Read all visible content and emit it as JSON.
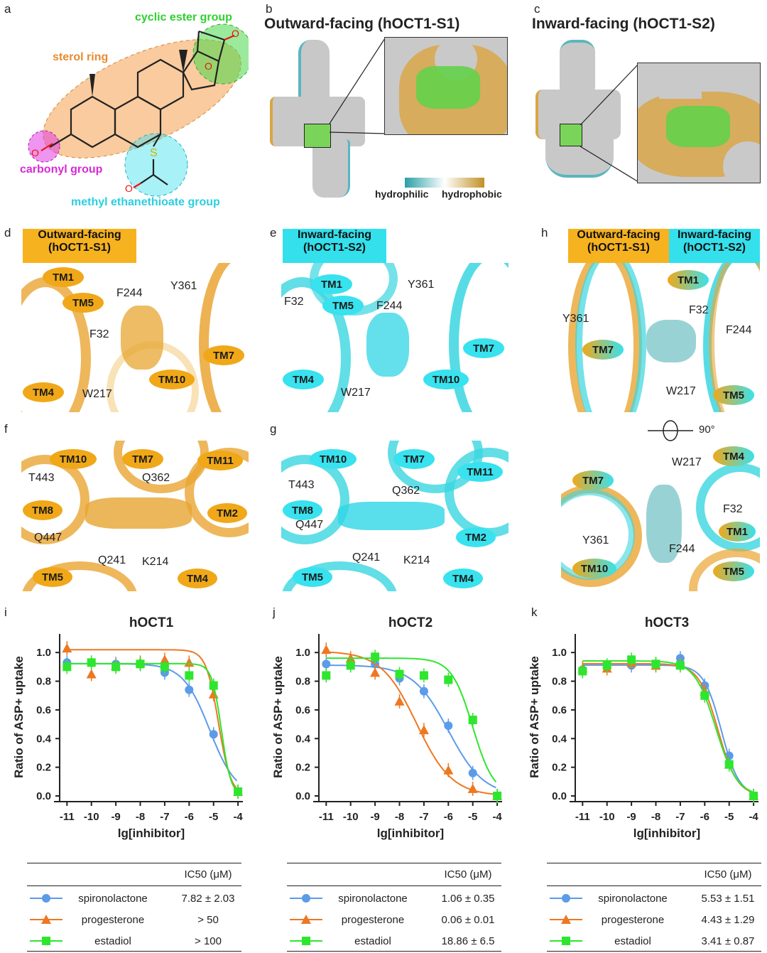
{
  "panels": {
    "a": {
      "label": "a",
      "groups": {
        "cyclic_ester": "cyclic ester group",
        "sterol_ring": "sterol ring",
        "carbonyl": "carbonyl group",
        "methyl": "methyl ethanethioate group"
      },
      "atom_s": "S",
      "atom_o": "O",
      "colors": {
        "ester": "#3dd63d",
        "sterol": "#f4a14e",
        "carbonyl": "#e23ee2",
        "methyl": "#2fd6e6"
      }
    },
    "b": {
      "label": "b",
      "title": "Outward-facing (hOCT1-S1)"
    },
    "c": {
      "label": "c",
      "title": "Inward-facing (hOCT1-S2)"
    },
    "colorbar": {
      "left": "hydrophilic",
      "right": "hydrophobic"
    },
    "d": {
      "label": "d",
      "header": "Outward-facing\n(hOCT1-S1)",
      "tms": [
        "TM1",
        "TM5",
        "TM7",
        "TM10",
        "TM4"
      ],
      "residues": [
        "F244",
        "Y361",
        "F32",
        "W217"
      ]
    },
    "e": {
      "label": "e",
      "header": "Inward-facing\n(hOCT1-S2)",
      "tms": [
        "TM1",
        "TM5",
        "TM7",
        "TM4",
        "TM10"
      ],
      "residues": [
        "Y361",
        "F32",
        "F244",
        "W217"
      ]
    },
    "h": {
      "label": "h",
      "header_left": "Outward-facing\n(hOCT1-S1)",
      "header_right": "Inward-facing\n(hOCT1-S2)",
      "top_tms": [
        "TM1",
        "TM7",
        "TM5"
      ],
      "top_residues": [
        "Y361",
        "F32",
        "F244",
        "W217"
      ],
      "rotation": "90°",
      "bottom_tms": [
        "TM4",
        "TM7",
        "TM1",
        "TM10",
        "TM5"
      ],
      "bottom_residues": [
        "W217",
        "F32",
        "Y361",
        "F244"
      ]
    },
    "f": {
      "label": "f",
      "tms": [
        "TM10",
        "TM7",
        "TM11",
        "TM8",
        "TM2",
        "TM5",
        "TM4"
      ],
      "residues": [
        "T443",
        "Q362",
        "Q447",
        "Q241",
        "K214"
      ]
    },
    "g": {
      "label": "g",
      "tms": [
        "TM10",
        "TM7",
        "TM11",
        "TM8",
        "TM2",
        "TM5",
        "TM4"
      ],
      "residues": [
        "T443",
        "Q362",
        "Q447",
        "Q241",
        "K214"
      ]
    }
  },
  "legend": {
    "header": "IC50 (μM)",
    "names": [
      "spironolactone",
      "progesterone",
      "estadiol"
    ]
  },
  "chart_data": [
    {
      "panel": "i",
      "type": "line",
      "title": "hOCT1",
      "xlabel": "lg[inhibitor]",
      "ylabel": "Ratio of ASP+ uptake",
      "xlim": [
        -11.3,
        -3.8
      ],
      "ylim": [
        0,
        1.1
      ],
      "xticks": [
        -11,
        -10,
        -9,
        -8,
        -7,
        -6,
        -5,
        -4
      ],
      "yticks": [
        0.0,
        0.2,
        0.4,
        0.6,
        0.8,
        1.0
      ],
      "x": [
        -11,
        -10,
        -9,
        -8,
        -7,
        -6,
        -5,
        -4
      ],
      "series": [
        {
          "name": "spironolactone",
          "color": "#5b9bea",
          "marker": "circle",
          "values": [
            0.93,
            0.93,
            0.92,
            0.92,
            0.86,
            0.74,
            0.43,
            0.03
          ],
          "ic50": "7.82 ± 2.03"
        },
        {
          "name": "progesterone",
          "color": "#ee7722",
          "marker": "triangle",
          "values": [
            1.03,
            0.85,
            0.91,
            0.93,
            0.95,
            0.93,
            0.71,
            0.03
          ],
          "ic50": "> 50"
        },
        {
          "name": "estadiol",
          "color": "#2ee62e",
          "marker": "square",
          "values": [
            0.9,
            0.93,
            0.9,
            0.92,
            0.9,
            0.84,
            0.77,
            0.03
          ],
          "ic50": "> 100"
        }
      ]
    },
    {
      "panel": "j",
      "type": "line",
      "title": "hOCT2",
      "xlabel": "lg[inhibitor]",
      "ylabel": "Ratio of ASP+ uptake",
      "xlim": [
        -11.3,
        -3.8
      ],
      "ylim": [
        0,
        1.1
      ],
      "xticks": [
        -11,
        -10,
        -9,
        -8,
        -7,
        -6,
        -5,
        -4
      ],
      "yticks": [
        0.0,
        0.2,
        0.4,
        0.6,
        0.8,
        1.0
      ],
      "x": [
        -11,
        -10,
        -9,
        -8,
        -7,
        -6,
        -5,
        -4
      ],
      "series": [
        {
          "name": "spironolactone",
          "color": "#5b9bea",
          "marker": "circle",
          "values": [
            0.92,
            0.92,
            0.92,
            0.82,
            0.73,
            0.49,
            0.16,
            0.0
          ],
          "ic50": "1.06 ± 0.35"
        },
        {
          "name": "progesterone",
          "color": "#ee7722",
          "marker": "triangle",
          "values": [
            1.02,
            0.96,
            0.86,
            0.66,
            0.46,
            0.18,
            0.05,
            0.0
          ],
          "ic50": "0.06 ± 0.01"
        },
        {
          "name": "estadiol",
          "color": "#2ee62e",
          "marker": "square",
          "values": [
            0.84,
            0.91,
            0.97,
            0.85,
            0.84,
            0.81,
            0.53,
            0.0
          ],
          "ic50": "18.86 ± 6.5"
        }
      ]
    },
    {
      "panel": "k",
      "type": "line",
      "title": "hOCT3",
      "xlabel": "lg[inhibitor]",
      "ylabel": "Ratio of ASP+ uptake",
      "xlim": [
        -11.3,
        -3.8
      ],
      "ylim": [
        0,
        1.1
      ],
      "xticks": [
        -11,
        -10,
        -9,
        -8,
        -7,
        -6,
        -5,
        -4
      ],
      "yticks": [
        0.0,
        0.2,
        0.4,
        0.6,
        0.8,
        1.0
      ],
      "x": [
        -11,
        -10,
        -9,
        -8,
        -7,
        -6,
        -5,
        -4
      ],
      "series": [
        {
          "name": "spironolactone",
          "color": "#5b9bea",
          "marker": "circle",
          "values": [
            0.88,
            0.91,
            0.91,
            0.92,
            0.96,
            0.77,
            0.28,
            0.0
          ],
          "ic50": "5.53 ± 1.51"
        },
        {
          "name": "progesterone",
          "color": "#ee7722",
          "marker": "triangle",
          "values": [
            0.89,
            0.89,
            0.93,
            0.91,
            0.92,
            0.73,
            0.22,
            0.0
          ],
          "ic50": "4.43 ± 1.29"
        },
        {
          "name": "estadiol",
          "color": "#2ee62e",
          "marker": "square",
          "values": [
            0.87,
            0.91,
            0.95,
            0.92,
            0.91,
            0.7,
            0.22,
            0.0
          ],
          "ic50": "3.41 ± 0.87"
        }
      ]
    }
  ]
}
